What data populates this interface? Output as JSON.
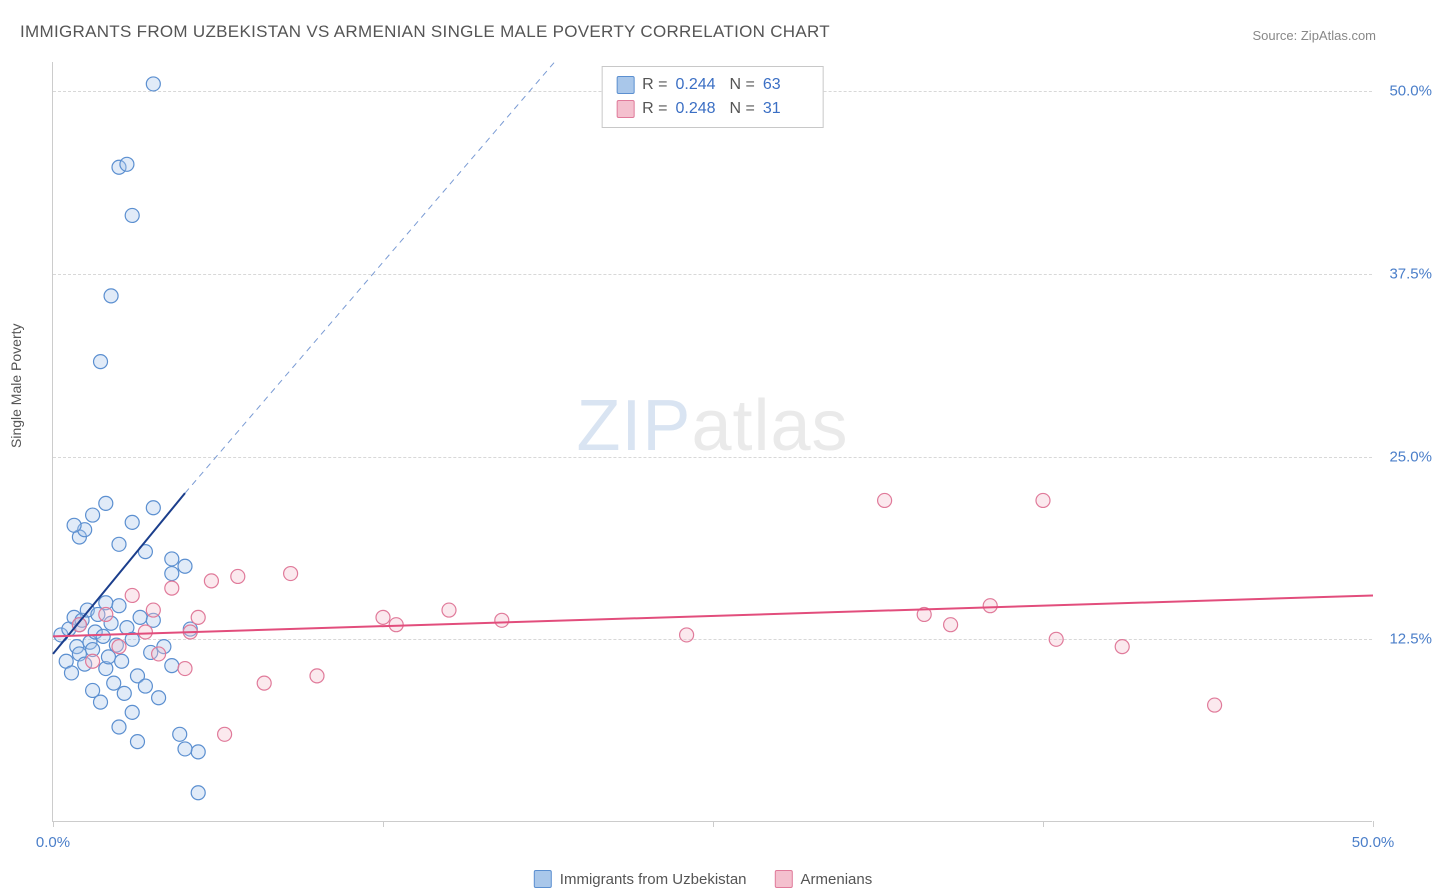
{
  "title": "IMMIGRANTS FROM UZBEKISTAN VS ARMENIAN SINGLE MALE POVERTY CORRELATION CHART",
  "source_label": "Source: ZipAtlas.com",
  "y_axis_title": "Single Male Poverty",
  "watermark_zip": "ZIP",
  "watermark_atlas": "atlas",
  "chart": {
    "type": "scatter-with-regression",
    "xlim": [
      0,
      50
    ],
    "ylim": [
      0,
      52
    ],
    "x_ticks": [
      0,
      12.5,
      25,
      37.5,
      50
    ],
    "x_tick_labels": [
      "0.0%",
      "",
      "",
      "",
      "50.0%"
    ],
    "y_ticks": [
      12.5,
      25,
      37.5,
      50
    ],
    "y_tick_labels": [
      "12.5%",
      "25.0%",
      "37.5%",
      "50.0%"
    ],
    "grid_color": "#d8d8d8",
    "axis_color": "#cccccc",
    "background_color": "#ffffff",
    "marker_radius": 7,
    "marker_stroke_width": 1.2,
    "marker_fill_opacity": 0.35,
    "series": [
      {
        "name": "Immigrants from Uzbekistan",
        "color_fill": "#a9c7ea",
        "color_stroke": "#5b8fd0",
        "legend_label": "Immigrants from Uzbekistan",
        "stats": {
          "R": "0.244",
          "N": "63"
        },
        "regression": {
          "solid": {
            "x1": 0,
            "y1": 11.5,
            "x2": 5.0,
            "y2": 22.5,
            "color": "#1b3e8c",
            "width": 2
          },
          "dashed": {
            "x1": 5.0,
            "y1": 22.5,
            "x2": 19.0,
            "y2": 52.0,
            "color": "#7a9bd4",
            "width": 1,
            "dash": "6,5"
          }
        },
        "points": [
          [
            0.3,
            12.8
          ],
          [
            0.5,
            11.0
          ],
          [
            0.6,
            13.2
          ],
          [
            0.7,
            10.2
          ],
          [
            0.8,
            14.0
          ],
          [
            0.9,
            12.0
          ],
          [
            1.0,
            11.5
          ],
          [
            1.0,
            13.5
          ],
          [
            1.1,
            13.8
          ],
          [
            1.2,
            10.8
          ],
          [
            1.3,
            14.5
          ],
          [
            1.4,
            12.3
          ],
          [
            1.5,
            9.0
          ],
          [
            1.5,
            11.8
          ],
          [
            1.6,
            13.0
          ],
          [
            1.7,
            14.2
          ],
          [
            1.8,
            8.2
          ],
          [
            1.9,
            12.7
          ],
          [
            2.0,
            15.0
          ],
          [
            2.0,
            10.5
          ],
          [
            2.1,
            11.3
          ],
          [
            2.2,
            13.6
          ],
          [
            2.3,
            9.5
          ],
          [
            2.4,
            12.1
          ],
          [
            2.5,
            14.8
          ],
          [
            2.6,
            11.0
          ],
          [
            2.7,
            8.8
          ],
          [
            2.8,
            13.3
          ],
          [
            3.0,
            7.5
          ],
          [
            3.0,
            12.5
          ],
          [
            3.2,
            10.0
          ],
          [
            3.3,
            14.0
          ],
          [
            3.5,
            9.3
          ],
          [
            3.7,
            11.6
          ],
          [
            3.8,
            13.8
          ],
          [
            4.0,
            8.5
          ],
          [
            4.2,
            12.0
          ],
          [
            4.5,
            10.7
          ],
          [
            4.8,
            6.0
          ],
          [
            5.0,
            17.5
          ],
          [
            5.2,
            13.2
          ],
          [
            5.5,
            4.8
          ],
          [
            1.0,
            19.5
          ],
          [
            1.2,
            20.0
          ],
          [
            1.5,
            21.0
          ],
          [
            2.5,
            19.0
          ],
          [
            2.0,
            21.8
          ],
          [
            3.5,
            18.5
          ],
          [
            3.0,
            20.5
          ],
          [
            3.8,
            21.5
          ],
          [
            4.5,
            17.0
          ],
          [
            0.8,
            20.3
          ],
          [
            1.8,
            31.5
          ],
          [
            2.2,
            36.0
          ],
          [
            2.5,
            44.8
          ],
          [
            2.8,
            45.0
          ],
          [
            3.0,
            41.5
          ],
          [
            3.8,
            50.5
          ],
          [
            4.5,
            18.0
          ],
          [
            5.0,
            5.0
          ],
          [
            2.5,
            6.5
          ],
          [
            3.2,
            5.5
          ],
          [
            5.5,
            2.0
          ]
        ]
      },
      {
        "name": "Armenians",
        "color_fill": "#f4c0ce",
        "color_stroke": "#e07a9a",
        "legend_label": "Armenians",
        "stats": {
          "R": "0.248",
          "N": "31"
        },
        "regression": {
          "solid": {
            "x1": 0,
            "y1": 12.7,
            "x2": 50,
            "y2": 15.5,
            "color": "#e24d7c",
            "width": 2
          },
          "dashed": null
        },
        "points": [
          [
            1.0,
            13.5
          ],
          [
            1.5,
            11.0
          ],
          [
            2.0,
            14.2
          ],
          [
            2.5,
            12.0
          ],
          [
            3.0,
            15.5
          ],
          [
            3.5,
            13.0
          ],
          [
            4.0,
            11.5
          ],
          [
            4.5,
            16.0
          ],
          [
            5.0,
            10.5
          ],
          [
            5.5,
            14.0
          ],
          [
            6.0,
            16.5
          ],
          [
            6.5,
            6.0
          ],
          [
            7.0,
            16.8
          ],
          [
            8.0,
            9.5
          ],
          [
            9.0,
            17.0
          ],
          [
            10.0,
            10.0
          ],
          [
            12.5,
            14.0
          ],
          [
            13.0,
            13.5
          ],
          [
            15.0,
            14.5
          ],
          [
            17.0,
            13.8
          ],
          [
            24.0,
            12.8
          ],
          [
            31.5,
            22.0
          ],
          [
            33.0,
            14.2
          ],
          [
            34.0,
            13.5
          ],
          [
            35.5,
            14.8
          ],
          [
            37.5,
            22.0
          ],
          [
            38.0,
            12.5
          ],
          [
            40.5,
            12.0
          ],
          [
            44.0,
            8.0
          ],
          [
            5.2,
            13.0
          ],
          [
            3.8,
            14.5
          ]
        ]
      }
    ]
  },
  "stat_legend_labels": {
    "R": "R =",
    "N": "N ="
  }
}
